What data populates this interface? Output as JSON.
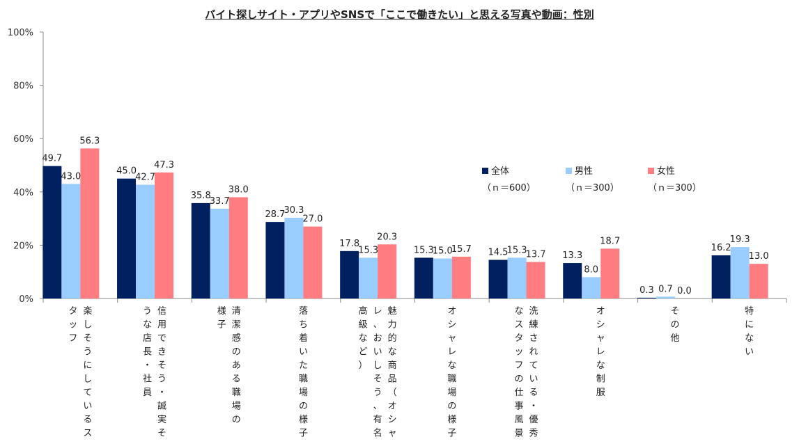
{
  "chart_data": {
    "type": "bar",
    "title": "バイト探しサイト・アプリやSNSで「ここで働きたい」と思える写真や動画：性別",
    "ylim": [
      0,
      100
    ],
    "yticks": [
      "0%",
      "20%",
      "40%",
      "60%",
      "80%",
      "100%"
    ],
    "legend_position": "center-right",
    "grid": false,
    "categories": [
      [
        "楽しそうにしているス",
        "タッフ"
      ],
      [
        "信用できそう・誠実そ",
        "うな店長・社員"
      ],
      [
        "清潔感のある職場の",
        "様子"
      ],
      [
        "落ち着いた職場の様子"
      ],
      [
        "魅力的な商品（オシャ",
        "レ、おいしそう、有名、",
        "高級など）"
      ],
      [
        "オシャレな職場の様子"
      ],
      [
        "洗練されている・優秀",
        "なスタッフの仕事風景"
      ],
      [
        "オシャレな制服"
      ],
      [
        "その他"
      ],
      [
        "特にない"
      ]
    ],
    "series": [
      {
        "name": "全体",
        "n": "（ｎ＝600）",
        "color": "#002060",
        "values": [
          49.7,
          45.0,
          35.8,
          28.7,
          17.8,
          15.3,
          14.5,
          13.3,
          0.3,
          16.2
        ]
      },
      {
        "name": "男性",
        "n": "（ｎ＝300）",
        "color": "#99CCFF",
        "values": [
          43.0,
          42.7,
          33.7,
          30.3,
          15.3,
          15.0,
          15.3,
          8.0,
          0.7,
          19.3
        ]
      },
      {
        "name": "女性",
        "n": "（ｎ＝300）",
        "color": "#FF7C80",
        "values": [
          56.3,
          47.3,
          38.0,
          27.0,
          20.3,
          15.7,
          13.7,
          18.7,
          0.0,
          13.0
        ]
      }
    ]
  }
}
